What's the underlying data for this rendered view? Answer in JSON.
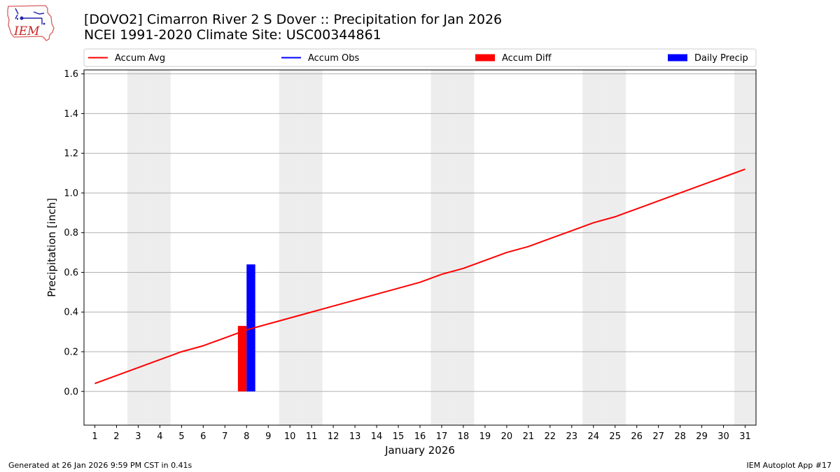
{
  "header": {
    "title_line1": "[DOVO2] Cimarron River 2 S Dover :: Precipitation for Jan 2026",
    "title_line2": "NCEI 1991-2020 Climate Site: USC00344861"
  },
  "logo": {
    "text": "IEM"
  },
  "footer": {
    "generated": "Generated at 26 Jan 2026 9:59 PM CST in 0.41s",
    "app": "IEM Autoplot App #17"
  },
  "colors": {
    "accum_avg": "#ff0000",
    "accum_obs": "#0000ff",
    "accum_diff": "#ff0000",
    "daily_precip": "#0000ff",
    "weekend_shade": "#ededed",
    "grid": "#b0b0b0"
  },
  "chart_data": {
    "type": "line+bar",
    "xlabel": "January 2026",
    "ylabel": "Precipitation [inch]",
    "xlim": [
      0.5,
      31.5
    ],
    "ylim": [
      -0.17,
      1.62
    ],
    "yticks": [
      0.0,
      0.2,
      0.4,
      0.6,
      0.8,
      1.0,
      1.2,
      1.4,
      1.6
    ],
    "ytick_labels": [
      "0.0",
      "0.2",
      "0.4",
      "0.6",
      "0.8",
      "1.0",
      "1.2",
      "1.4",
      "1.6"
    ],
    "days": [
      1,
      2,
      3,
      4,
      5,
      6,
      7,
      8,
      9,
      10,
      11,
      12,
      13,
      14,
      15,
      16,
      17,
      18,
      19,
      20,
      21,
      22,
      23,
      24,
      25,
      26,
      27,
      28,
      29,
      30,
      31
    ],
    "grid": "horizontal",
    "weekend_days": [
      3,
      4,
      10,
      11,
      17,
      18,
      24,
      25,
      31
    ],
    "legend": {
      "placement": "top",
      "entries": [
        {
          "label": "Accum Avg",
          "kind": "line",
          "color": "#ff0000"
        },
        {
          "label": "Accum Obs",
          "kind": "line",
          "color": "#0000ff"
        },
        {
          "label": "Accum Diff",
          "kind": "bar",
          "color": "#ff0000"
        },
        {
          "label": "Daily Precip",
          "kind": "bar",
          "color": "#0000ff"
        }
      ]
    },
    "series": [
      {
        "name": "Accum Avg",
        "kind": "line",
        "color": "#ff0000",
        "x": [
          1,
          2,
          3,
          4,
          5,
          6,
          7,
          8,
          9,
          10,
          11,
          12,
          13,
          14,
          15,
          16,
          17,
          18,
          19,
          20,
          21,
          22,
          23,
          24,
          25,
          26,
          27,
          28,
          29,
          30,
          31
        ],
        "values": [
          0.04,
          0.08,
          0.12,
          0.16,
          0.2,
          0.23,
          0.27,
          0.31,
          0.34,
          0.37,
          0.4,
          0.43,
          0.46,
          0.49,
          0.52,
          0.55,
          0.59,
          0.62,
          0.66,
          0.7,
          0.73,
          0.77,
          0.81,
          0.85,
          0.88,
          0.92,
          0.96,
          1.0,
          1.04,
          1.08,
          1.12
        ]
      },
      {
        "name": "Accum Diff",
        "kind": "bar",
        "color": "#ff0000",
        "x": [
          8
        ],
        "values": [
          0.33
        ],
        "offset": "left"
      },
      {
        "name": "Daily Precip",
        "kind": "bar",
        "color": "#0000ff",
        "x": [
          8
        ],
        "values": [
          0.64
        ],
        "offset": "right"
      }
    ]
  }
}
